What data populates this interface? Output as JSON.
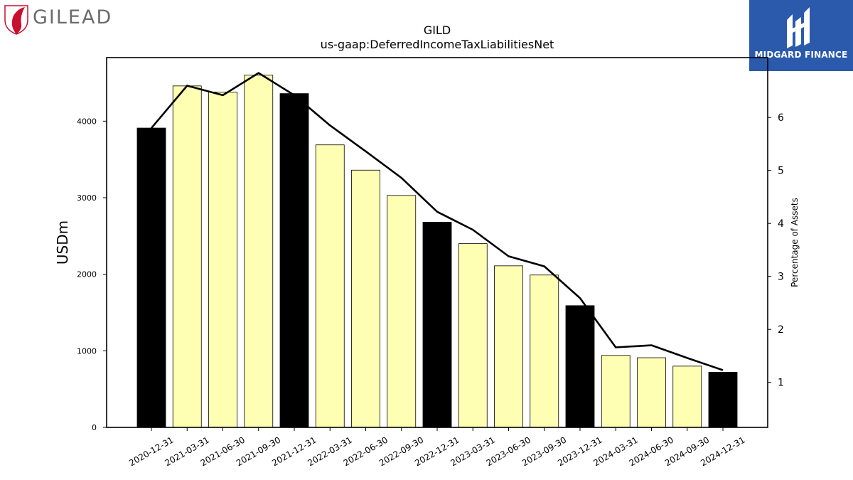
{
  "logos": {
    "left": "GILEAD",
    "right": "MIDGARD FINANCE"
  },
  "chart_data": {
    "type": "bar",
    "title": "GILD",
    "subtitle": "us-gaap:DeferredIncomeTaxLiabilitiesNet",
    "ylabel": "USDm",
    "y2label": "Percentage of Assets",
    "categories": [
      "2020-12-31",
      "2021-03-31",
      "2021-06-30",
      "2021-09-30",
      "2021-12-31",
      "2022-03-31",
      "2022-06-30",
      "2022-09-30",
      "2022-12-31",
      "2023-03-31",
      "2023-06-30",
      "2023-09-30",
      "2023-12-31",
      "2024-03-31",
      "2024-06-30",
      "2024-09-30",
      "2024-12-31"
    ],
    "series": [
      {
        "values": [
          3910,
          4460,
          4380,
          4600,
          4360,
          3690,
          3360,
          3030,
          2680,
          2400,
          2110,
          1990,
          1590,
          940,
          910,
          800,
          720
        ],
        "highlight": [
          true,
          false,
          false,
          false,
          true,
          false,
          false,
          false,
          true,
          false,
          false,
          false,
          true,
          false,
          false,
          false,
          true
        ]
      },
      {
        "axis": "right",
        "type": "line",
        "values": [
          5.8,
          6.6,
          6.42,
          6.84,
          6.42,
          5.85,
          5.36,
          4.86,
          4.22,
          3.88,
          3.38,
          3.19,
          2.59,
          1.66,
          1.7,
          1.46,
          1.23
        ]
      }
    ],
    "ylim": [
      0,
      4830
    ],
    "yticks": [
      0,
      1000,
      2000,
      3000,
      4000
    ],
    "y2lim": [
      0.15,
      7.13
    ],
    "y2ticks": [
      1,
      2,
      3,
      4,
      5,
      6
    ],
    "colors": {
      "highlight": "#000000",
      "normal": "#ffffb3",
      "edge": "#000000",
      "line": "#000000"
    },
    "grid": false,
    "legend": "none"
  }
}
